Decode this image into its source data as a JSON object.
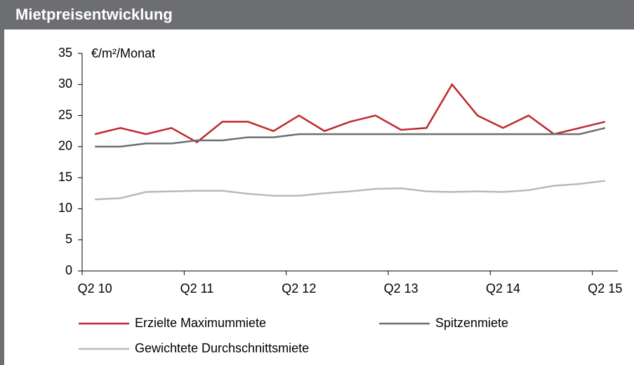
{
  "chart_data": {
    "type": "line",
    "title": "Mietpreisentwicklung",
    "y_label": "€/m²/Monat",
    "categories": [
      "Q2 10",
      null,
      null,
      null,
      "Q2 11",
      null,
      null,
      null,
      "Q2 12",
      null,
      null,
      null,
      "Q2 13",
      null,
      null,
      null,
      "Q2 14",
      null,
      null,
      null,
      "Q2 15"
    ],
    "ylim": [
      0,
      35
    ],
    "yticks": [
      0,
      5,
      10,
      15,
      20,
      25,
      30,
      35
    ],
    "legend_position": "bottom",
    "series": [
      {
        "name": "Erzielte Maximummiete",
        "color": "#c0282d",
        "values": [
          22,
          23,
          22,
          23,
          20.7,
          24,
          24,
          22.5,
          25,
          22.5,
          24,
          25,
          22.7,
          23,
          30,
          25,
          23,
          25,
          22,
          23,
          24
        ]
      },
      {
        "name": "Spitzenmiete",
        "color": "#6d6e71",
        "values": [
          20,
          20,
          20.5,
          20.5,
          21,
          21,
          21.5,
          21.5,
          22,
          22,
          22,
          22,
          22,
          22,
          22,
          22,
          22,
          22,
          22,
          22,
          23
        ]
      },
      {
        "name": "Gewichtete Durchschnittsmiete",
        "color": "#b9b9b9",
        "values": [
          11.5,
          11.7,
          12.7,
          12.8,
          12.9,
          12.9,
          12.4,
          12.1,
          12.1,
          12.5,
          12.8,
          13.2,
          13.3,
          12.8,
          12.7,
          12.8,
          12.7,
          13,
          13.7,
          14,
          14.5
        ]
      }
    ]
  }
}
